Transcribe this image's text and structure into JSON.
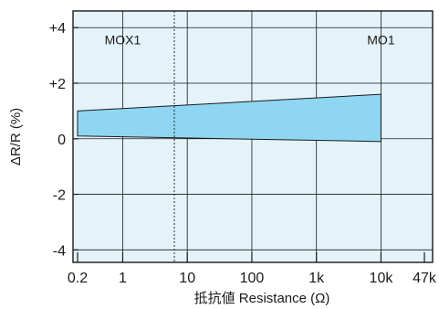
{
  "chart_data": {
    "type": "area",
    "xscale": "log",
    "xlabel": "抵抗値  Resistance (Ω)",
    "ylabel": "ΔR/R (%)",
    "x_ticks": [
      {
        "value": 0.2,
        "label": "0.2"
      },
      {
        "value": 1,
        "label": "1"
      },
      {
        "value": 10,
        "label": "10"
      },
      {
        "value": 100,
        "label": "100"
      },
      {
        "value": 1000,
        "label": "1k"
      },
      {
        "value": 10000,
        "label": "10k"
      },
      {
        "value": 47000,
        "label": "47k"
      }
    ],
    "y_ticks": [
      {
        "value": 4,
        "label": "+4"
      },
      {
        "value": 2,
        "label": "+2"
      },
      {
        "value": 0,
        "label": "0"
      },
      {
        "value": -2,
        "label": "-2"
      },
      {
        "value": -4,
        "label": "-4"
      }
    ],
    "xlim": [
      0.17,
      63000
    ],
    "ylim": [
      -4.45,
      4.6
    ],
    "grid": true,
    "band": {
      "upper": [
        {
          "x": 0.2,
          "y": 1.0
        },
        {
          "x": 10000,
          "y": 1.6
        }
      ],
      "lower": [
        {
          "x": 0.2,
          "y": 0.1
        },
        {
          "x": 10000,
          "y": -0.1
        }
      ]
    },
    "divider_x": 6.3,
    "annotations": [
      {
        "text": "MOX1",
        "x": 1.0,
        "y": 3.4
      },
      {
        "text": "MO1",
        "x": 10000,
        "y": 3.4
      }
    ],
    "colors": {
      "plot_bg": "#e4f3fa",
      "band_fill": "#8fd6f2",
      "line": "#1a1a1a",
      "grid": "#1a1a1a"
    }
  }
}
